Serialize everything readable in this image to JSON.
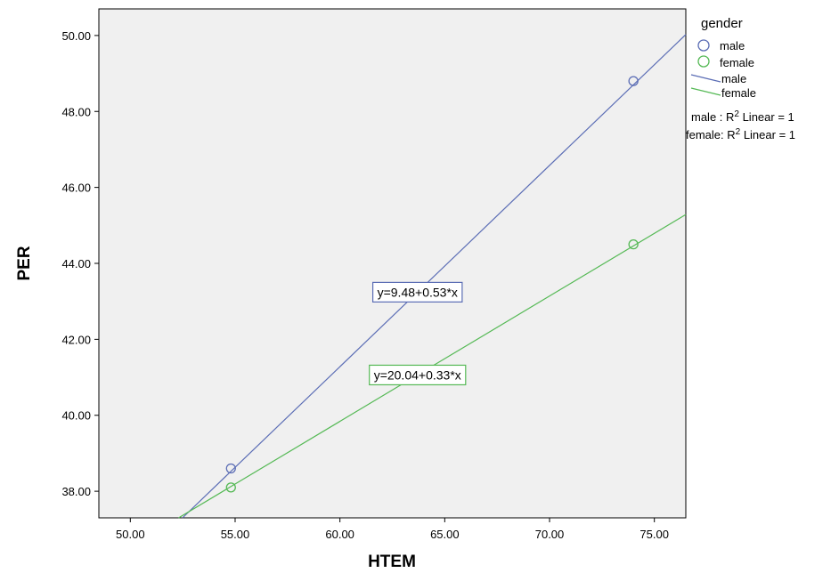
{
  "chart_data": {
    "type": "scatter",
    "xlabel": "HTEM",
    "ylabel": "PER",
    "xlim": [
      48.5,
      76.5
    ],
    "ylim": [
      37.3,
      50.7
    ],
    "x_ticks": [
      "50.00",
      "55.00",
      "60.00",
      "65.00",
      "70.00",
      "75.00"
    ],
    "y_ticks": [
      "38.00",
      "40.00",
      "42.00",
      "44.00",
      "46.00",
      "48.00",
      "50.00"
    ],
    "grid": false,
    "background": "#f0f0f0",
    "legend_placement": "right",
    "series": [
      {
        "name": "male",
        "color": "#5b6db5",
        "points": [
          {
            "x": 54.8,
            "y": 38.6
          },
          {
            "x": 74.0,
            "y": 48.8
          }
        ],
        "fit": {
          "intercept": 9.48,
          "slope": 0.53,
          "label": "y=9.48+0.53*x"
        }
      },
      {
        "name": "female",
        "color": "#55b955",
        "points": [
          {
            "x": 54.8,
            "y": 38.1
          },
          {
            "x": 74.0,
            "y": 44.5
          }
        ],
        "fit": {
          "intercept": 20.04,
          "slope": 0.33,
          "label": "y=20.04+0.33*x"
        }
      }
    ],
    "legend": {
      "title": "gender",
      "marker_entries": [
        "male",
        "female"
      ],
      "line_entries": [
        "male",
        "female"
      ],
      "r2_entries": [
        {
          "prefix": "male : R",
          "sup": "2",
          "suffix": " Linear = 1"
        },
        {
          "prefix": "female: R",
          "sup": "2",
          "suffix": " Linear = 1"
        }
      ]
    }
  }
}
